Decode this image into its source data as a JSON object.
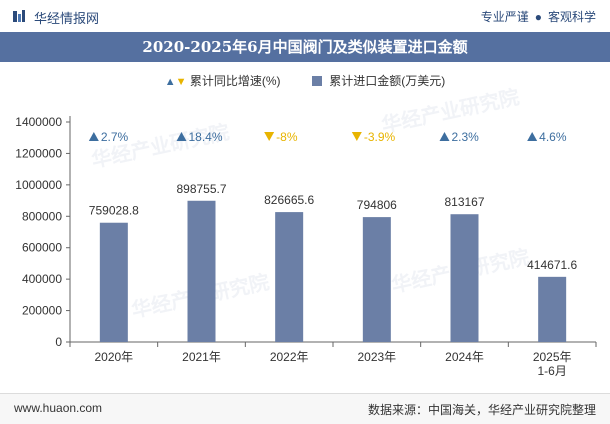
{
  "header": {
    "brand": "华经情报网",
    "tag1": "专业严谨",
    "tag2": "客观科学"
  },
  "title": "2020-2025年6月中国阀门及类似装置进口金额",
  "legend": {
    "growth_label": "累计同比增速(%)",
    "amount_label": "累计进口金额(万美元)"
  },
  "watermark": "华经产业研究院",
  "footer": {
    "url": "www.huaon.com",
    "source": "数据来源：中国海关，华经产业研究院整理"
  },
  "colors": {
    "bar": "#6b7fa6",
    "up": "#3d6e9f",
    "down": "#e8b400",
    "title_bg": "#5570a0"
  },
  "chart_data": {
    "type": "bar",
    "categories": [
      "2020年",
      "2021年",
      "2022年",
      "2023年",
      "2024年",
      "2025年\n1-6月"
    ],
    "series": [
      {
        "name": "累计进口金额(万美元)",
        "values": [
          759028.8,
          898755.7,
          826665.6,
          794806,
          813167,
          414671.6
        ]
      },
      {
        "name": "累计同比增速(%)",
        "values": [
          2.7,
          18.4,
          -8,
          -3.9,
          2.3,
          4.6
        ],
        "labels": [
          "2.7%",
          "18.4%",
          "-8%",
          "-3.9%",
          "2.3%",
          "4.6%"
        ]
      }
    ],
    "value_labels": [
      "759028.8",
      "898755.7",
      "826665.6",
      "794806",
      "813167",
      "414671.6"
    ],
    "yticks": [
      "0",
      "200000",
      "400000",
      "600000",
      "800000",
      "1000000",
      "1200000",
      "1400000"
    ],
    "ylim": [
      0,
      1400000
    ]
  }
}
